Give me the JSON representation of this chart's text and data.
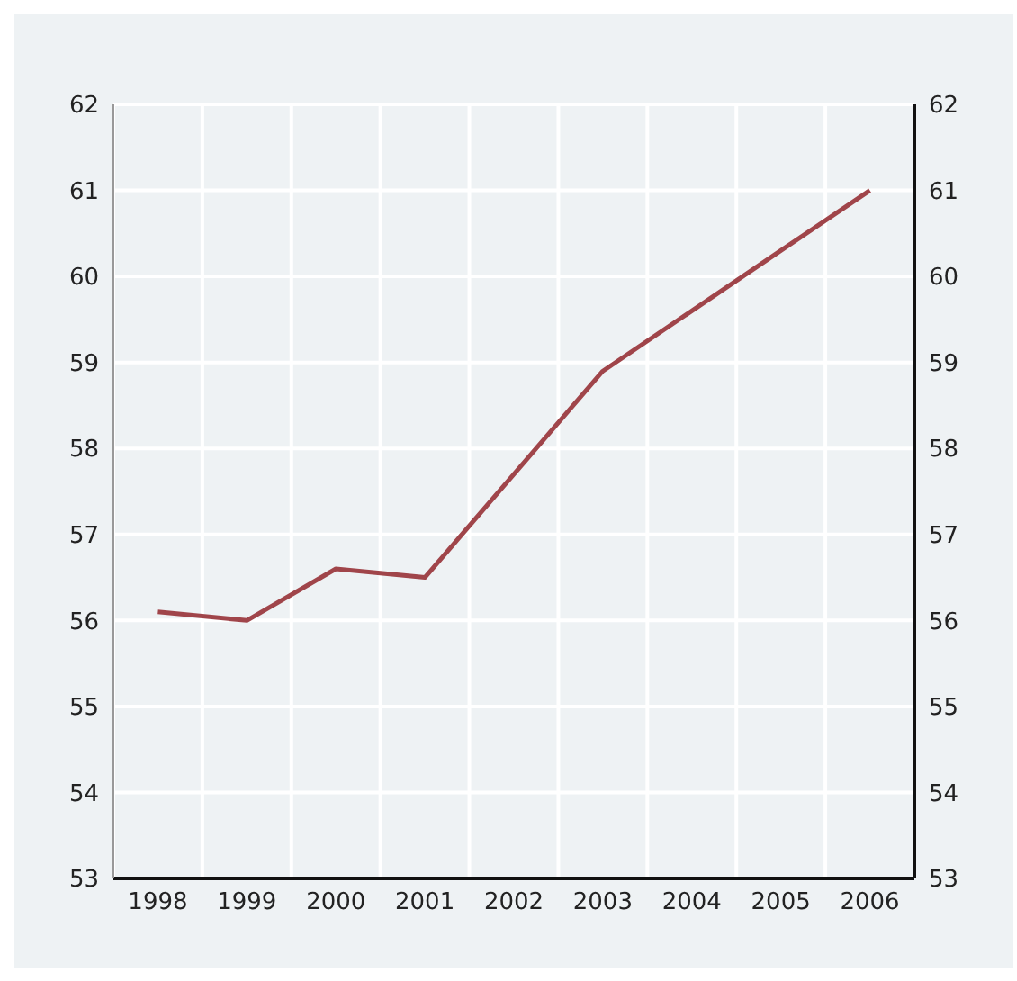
{
  "chart_data": {
    "type": "line",
    "categories": [
      "1998",
      "1999",
      "2000",
      "2001",
      "2002",
      "2003",
      "2004",
      "2005",
      "2006"
    ],
    "series": [
      {
        "color": "#a0454a",
        "values": [
          56.1,
          56.0,
          56.6,
          56.5,
          57.7,
          58.9,
          59.6,
          60.3,
          61.0
        ]
      }
    ],
    "ylim": [
      53,
      62
    ],
    "yticks": [
      53,
      54,
      55,
      56,
      57,
      58,
      59,
      60,
      61,
      62
    ],
    "y2lim": [
      53,
      62
    ],
    "y2ticks": [
      53,
      54,
      55,
      56,
      57,
      58,
      59,
      60,
      61,
      62
    ],
    "grid": true,
    "marker": "none",
    "line_style": "solid"
  }
}
